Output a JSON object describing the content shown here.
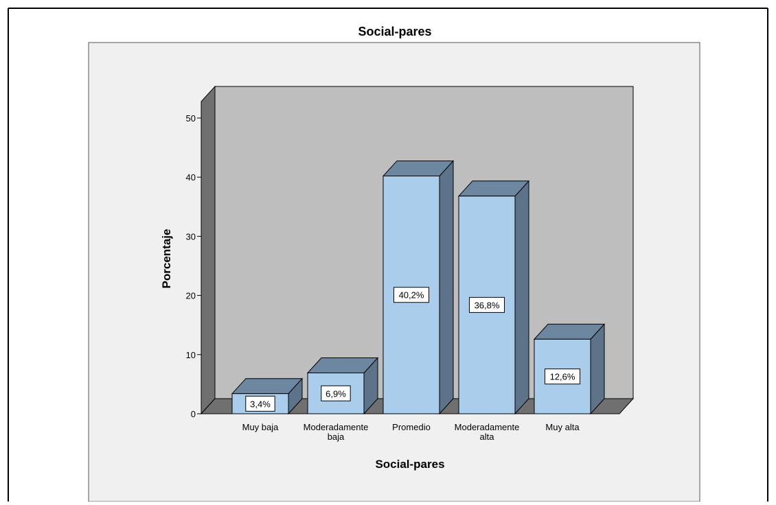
{
  "chart_data": {
    "type": "bar",
    "title": "Social-pares",
    "xlabel": "Social-pares",
    "ylabel": "Porcentaje",
    "categories": [
      [
        "Muy baja"
      ],
      [
        "Moderadamente",
        "baja"
      ],
      [
        "Promedio"
      ],
      [
        "Moderadamente",
        "alta"
      ],
      [
        "Muy alta"
      ]
    ],
    "values": [
      3.4,
      6.9,
      40.2,
      36.8,
      12.6
    ],
    "data_labels": [
      "3,4%",
      "6,9%",
      "40,2%",
      "36,8%",
      "12,6%"
    ],
    "ylim": [
      0,
      50
    ],
    "yticks": [
      0,
      10,
      20,
      30,
      40,
      50
    ],
    "grid": false,
    "style": "3d",
    "colors": {
      "bar_front": "#aacdec",
      "bar_top": "#6e87a0",
      "bar_side": "#5d7389",
      "back_wall": "#bebebe",
      "side_wall": "#707070",
      "floor": "#707070",
      "chart_area": "#f0f0f0",
      "outline": "#000000"
    }
  }
}
